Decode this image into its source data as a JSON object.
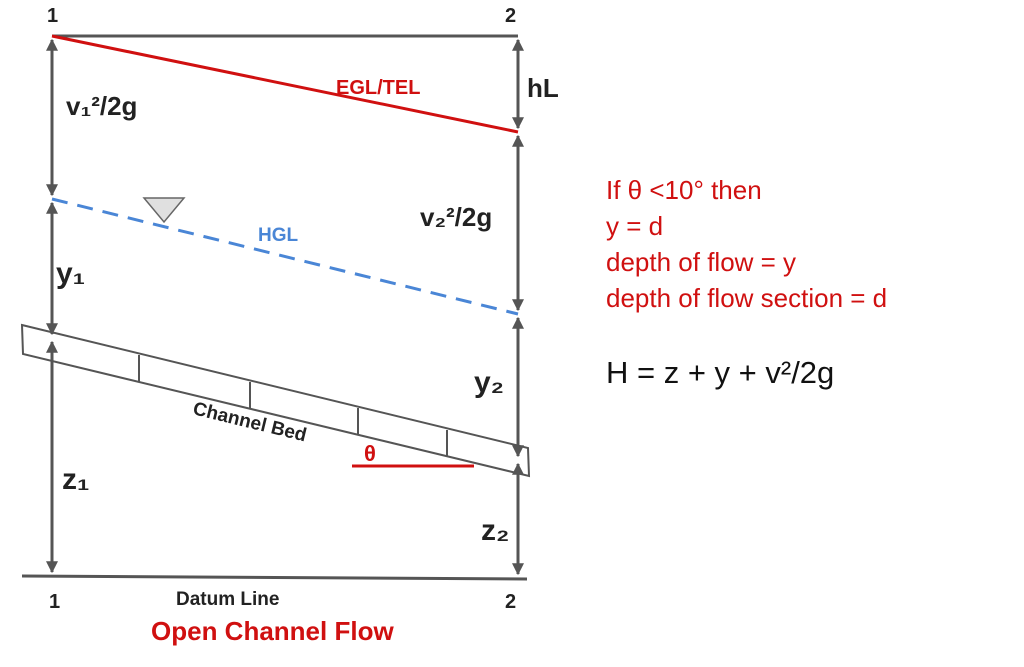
{
  "diagram": {
    "section_labels": {
      "left_top": "1",
      "right_top": "2",
      "left_bottom": "1",
      "right_bottom": "2"
    },
    "lines": {
      "egl": "EGL/TEL",
      "hgl": "HGL",
      "channel_bed": "Channel Bed",
      "datum": "Datum Line",
      "angle": "θ"
    },
    "heads": {
      "v1_head": "v₁²/2g",
      "v2_head": "v₂²/2g",
      "y1": "y₁",
      "y2": "y₂",
      "z1": "z₁",
      "z2": "z₂",
      "head_loss": "hL"
    },
    "caption": "Open Channel Flow"
  },
  "notes": {
    "lines": [
      "If θ <10° then",
      "y  = d",
      "depth of flow = y",
      "depth of flow section = d"
    ],
    "equation": "H = z + y +  v²/2g"
  },
  "colors": {
    "egl": "#d01010",
    "hgl": "#4a86d6",
    "structure": "#555555",
    "text": "#222222"
  }
}
